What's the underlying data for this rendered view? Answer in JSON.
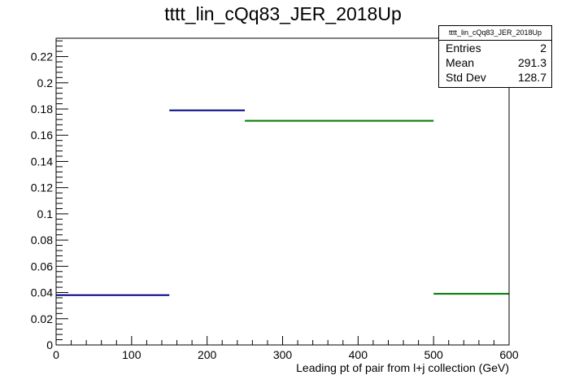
{
  "chart_data": {
    "type": "histogram",
    "title": "tttt_lin_cQq83_JER_2018Up",
    "xlabel": "Leading pt of pair from l+j collection (GeV)",
    "ylabel": "",
    "xlim": [
      0,
      600
    ],
    "ylim": [
      0,
      0.234
    ],
    "x_ticks": [
      0,
      100,
      200,
      300,
      400,
      500,
      600
    ],
    "y_ticks": [
      0,
      0.02,
      0.04,
      0.06,
      0.08,
      0.1,
      0.12,
      0.14,
      0.16,
      0.18,
      0.2,
      0.22
    ],
    "x_tick_labels": [
      "0",
      "100",
      "200",
      "300",
      "400",
      "500",
      "600"
    ],
    "y_tick_labels": [
      "0",
      "0.02",
      "0.04",
      "0.06",
      "0.08",
      "0.1",
      "0.12",
      "0.14",
      "0.16",
      "0.18",
      "0.2",
      "0.22"
    ],
    "bins": [
      {
        "x_low": 0,
        "x_high": 150,
        "value": 0.038,
        "color": "#000080"
      },
      {
        "x_low": 150,
        "x_high": 250,
        "value": 0.179,
        "color": "#000080"
      },
      {
        "x_low": 250,
        "x_high": 500,
        "value": 0.171,
        "color": "#007800"
      },
      {
        "x_low": 500,
        "x_high": 600,
        "value": 0.039,
        "color": "#007800"
      }
    ],
    "stats": {
      "title": "tttt_lin_cQq83_JER_2018Up",
      "entries_label": "Entries",
      "entries": "2",
      "mean_label": "Mean",
      "mean": "291.3",
      "stddev_label": "Std Dev",
      "stddev": "128.7"
    },
    "grid": false,
    "legend": "top-right"
  }
}
